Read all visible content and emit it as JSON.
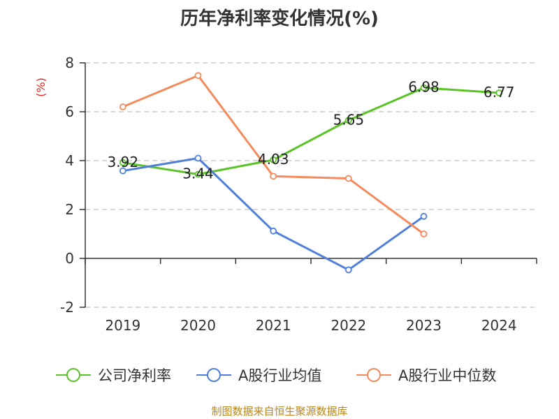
{
  "chart_data": {
    "type": "line",
    "title": "历年净利率变化情况(%)",
    "ylabel": "(%)",
    "xlabel": "",
    "categories": [
      "2019",
      "2020",
      "2021",
      "2022",
      "2023",
      "2024"
    ],
    "ylim": [
      -2,
      8
    ],
    "yticks": [
      -2,
      0,
      2,
      4,
      6,
      8
    ],
    "grid": true,
    "legend_position": "bottom",
    "series": [
      {
        "name": "公司净利率",
        "color": "#5ac426",
        "values": [
          3.92,
          3.44,
          4.03,
          5.65,
          6.98,
          6.77
        ],
        "labels": [
          "3.92",
          "3.44",
          "4.03",
          "5.65",
          "6.98",
          "6.77"
        ]
      },
      {
        "name": "A股行业均值",
        "color": "#4f7fdb",
        "values": [
          3.58,
          4.1,
          1.12,
          -0.47,
          1.72,
          null
        ]
      },
      {
        "name": "A股行业中位数",
        "color": "#f58b5c",
        "values": [
          6.2,
          7.48,
          3.36,
          3.27,
          1.0,
          null
        ]
      }
    ]
  },
  "footer": {
    "source": "制图数据来自恒生聚源数据库"
  }
}
